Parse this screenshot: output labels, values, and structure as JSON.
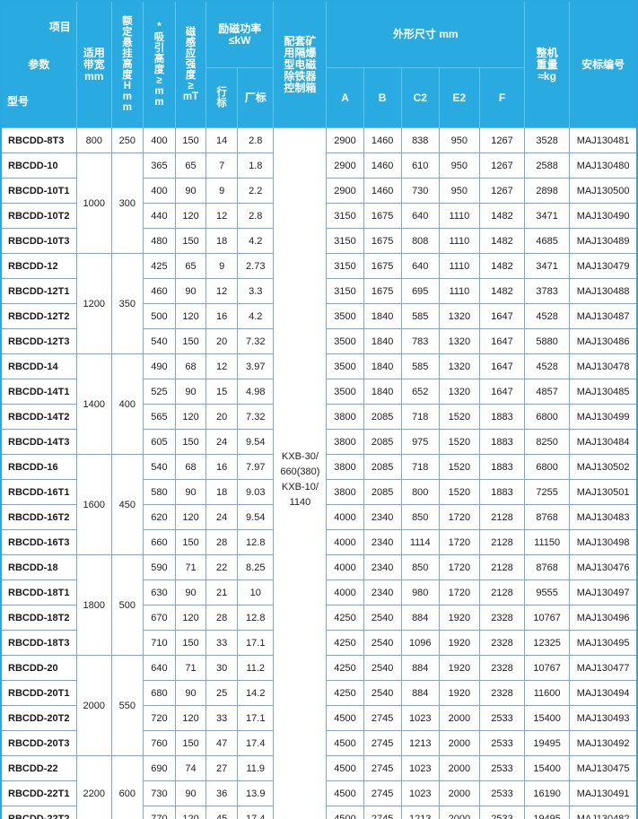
{
  "header": {
    "corner": {
      "top": "项目",
      "mid": "参数",
      "bot": "型号"
    },
    "band": "适用\n带宽\nmm",
    "hang": "额\n定\n悬\n挂\n高\n度\nH\nm\nm",
    "attract": "*\n吸\n引\n高\n度\n≥\nm\nm",
    "magnetic": "磁\n感\n应\n强\n度\n≥\nmT",
    "power_group": "励磁功率\n≤kW",
    "power_row": "行\n标",
    "power_factory": "厂标",
    "ctrl": "配套矿\n用隔爆\n型电磁\n除铁器\n控制箱",
    "dims_group": "外形尺寸 mm",
    "dims": [
      "A",
      "B",
      "C2",
      "E2",
      "F"
    ],
    "weight": "整机\n重量\n≈kg",
    "cert": "安标编号"
  },
  "ctrl_box_value": "KXB-30/\n660(380)\nKXB-10/\n1140",
  "colors": {
    "header_bg": "#29abe2",
    "grid_line": "#7ba7d7",
    "header_line": "#5ec5ee",
    "text": "#1d1d1d"
  },
  "rows": [
    {
      "model": "RBCDD-8T3",
      "band": "800",
      "hang": "250",
      "span": 1,
      "attract": "400",
      "magnetic": "150",
      "std_row": "14",
      "std_factory": "2.8",
      "a": "2900",
      "b": "1460",
      "c2": "838",
      "e2": "950",
      "f": "1267",
      "weight": "3528",
      "cert": "MAJ130481"
    },
    {
      "model": "RBCDD-10",
      "band": "1000",
      "hang": "300",
      "span": 4,
      "attract": "365",
      "magnetic": "65",
      "std_row": "7",
      "std_factory": "1.8",
      "a": "2900",
      "b": "1460",
      "c2": "610",
      "e2": "950",
      "f": "1267",
      "weight": "2588",
      "cert": "MAJ130480"
    },
    {
      "model": "RBCDD-10T1",
      "attract": "400",
      "magnetic": "90",
      "std_row": "9",
      "std_factory": "2.2",
      "a": "2900",
      "b": "1460",
      "c2": "730",
      "e2": "950",
      "f": "1267",
      "weight": "2898",
      "cert": "MAJ130500"
    },
    {
      "model": "RBCDD-10T2",
      "attract": "440",
      "magnetic": "120",
      "std_row": "12",
      "std_factory": "2.8",
      "a": "3150",
      "b": "1675",
      "c2": "640",
      "e2": "1110",
      "f": "1482",
      "weight": "3471",
      "cert": "MAJ130490"
    },
    {
      "model": "RBCDD-10T3",
      "attract": "480",
      "magnetic": "150",
      "std_row": "18",
      "std_factory": "4.2",
      "a": "3150",
      "b": "1675",
      "c2": "808",
      "e2": "1110",
      "f": "1482",
      "weight": "4685",
      "cert": "MAJ130489"
    },
    {
      "model": "RBCDD-12",
      "band": "1200",
      "hang": "350",
      "span": 4,
      "attract": "425",
      "magnetic": "65",
      "std_row": "9",
      "std_factory": "2.73",
      "a": "3150",
      "b": "1675",
      "c2": "640",
      "e2": "1110",
      "f": "1482",
      "weight": "3471",
      "cert": "MAJ130479"
    },
    {
      "model": "RBCDD-12T1",
      "attract": "460",
      "magnetic": "90",
      "std_row": "12",
      "std_factory": "3.3",
      "a": "3150",
      "b": "1675",
      "c2": "695",
      "e2": "1110",
      "f": "1482",
      "weight": "3783",
      "cert": "MAJ130488"
    },
    {
      "model": "RBCDD-12T2",
      "attract": "500",
      "magnetic": "120",
      "std_row": "16",
      "std_factory": "4.2",
      "a": "3500",
      "b": "1840",
      "c2": "585",
      "e2": "1320",
      "f": "1647",
      "weight": "4528",
      "cert": "MAJ130487"
    },
    {
      "model": "RBCDD-12T3",
      "attract": "540",
      "magnetic": "150",
      "std_row": "20",
      "std_factory": "7.32",
      "a": "3500",
      "b": "1840",
      "c2": "783",
      "e2": "1320",
      "f": "1647",
      "weight": "5880",
      "cert": "MAJ130486"
    },
    {
      "model": "RBCDD-14",
      "band": "1400",
      "hang": "400",
      "span": 4,
      "attract": "490",
      "magnetic": "68",
      "std_row": "12",
      "std_factory": "3.97",
      "a": "3500",
      "b": "1840",
      "c2": "585",
      "e2": "1320",
      "f": "1647",
      "weight": "4528",
      "cert": "MAJ130478"
    },
    {
      "model": "RBCDD-14T1",
      "attract": "525",
      "magnetic": "90",
      "std_row": "15",
      "std_factory": "4.98",
      "a": "3500",
      "b": "1840",
      "c2": "652",
      "e2": "1320",
      "f": "1647",
      "weight": "4857",
      "cert": "MAJ130485"
    },
    {
      "model": "RBCDD-14T2",
      "attract": "565",
      "magnetic": "120",
      "std_row": "20",
      "std_factory": "7.32",
      "a": "3800",
      "b": "2085",
      "c2": "718",
      "e2": "1520",
      "f": "1883",
      "weight": "6800",
      "cert": "MAJ130499"
    },
    {
      "model": "RBCDD-14T3",
      "attract": "605",
      "magnetic": "150",
      "std_row": "24",
      "std_factory": "9.54",
      "a": "3800",
      "b": "2085",
      "c2": "975",
      "e2": "1520",
      "f": "1883",
      "weight": "8250",
      "cert": "MAJ130484"
    },
    {
      "model": "RBCDD-16",
      "band": "1600",
      "hang": "450",
      "span": 4,
      "attract": "540",
      "magnetic": "68",
      "std_row": "16",
      "std_factory": "7.97",
      "a": "3800",
      "b": "2085",
      "c2": "718",
      "e2": "1520",
      "f": "1883",
      "weight": "6800",
      "cert": "MAJ130502"
    },
    {
      "model": "RBCDD-16T1",
      "attract": "580",
      "magnetic": "90",
      "std_row": "18",
      "std_factory": "9.03",
      "a": "3800",
      "b": "2085",
      "c2": "800",
      "e2": "1520",
      "f": "1883",
      "weight": "7255",
      "cert": "MAJ130501"
    },
    {
      "model": "RBCDD-16T2",
      "attract": "620",
      "magnetic": "120",
      "std_row": "24",
      "std_factory": "9.54",
      "a": "4000",
      "b": "2340",
      "c2": "850",
      "e2": "1720",
      "f": "2128",
      "weight": "8768",
      "cert": "MAJ130483"
    },
    {
      "model": "RBCDD-16T3",
      "attract": "660",
      "magnetic": "150",
      "std_row": "28",
      "std_factory": "12.8",
      "a": "4000",
      "b": "2340",
      "c2": "1114",
      "e2": "1720",
      "f": "2128",
      "weight": "11150",
      "cert": "MAJ130498"
    },
    {
      "model": "RBCDD-18",
      "band": "1800",
      "hang": "500",
      "span": 4,
      "attract": "590",
      "magnetic": "71",
      "std_row": "22",
      "std_factory": "8.25",
      "a": "4000",
      "b": "2340",
      "c2": "850",
      "e2": "1720",
      "f": "2128",
      "weight": "8768",
      "cert": "MAJ130476"
    },
    {
      "model": "RBCDD-18T1",
      "attract": "630",
      "magnetic": "90",
      "std_row": "21",
      "std_factory": "10",
      "a": "4000",
      "b": "2340",
      "c2": "980",
      "e2": "1720",
      "f": "2128",
      "weight": "9555",
      "cert": "MAJ130497"
    },
    {
      "model": "RBCDD-18T2",
      "attract": "670",
      "magnetic": "120",
      "std_row": "28",
      "std_factory": "12.8",
      "a": "4250",
      "b": "2540",
      "c2": "884",
      "e2": "1920",
      "f": "2328",
      "weight": "10767",
      "cert": "MAJ130496"
    },
    {
      "model": "RBCDD-18T3",
      "attract": "710",
      "magnetic": "150",
      "std_row": "33",
      "std_factory": "17.1",
      "a": "4250",
      "b": "2540",
      "c2": "1096",
      "e2": "1920",
      "f": "2328",
      "weight": "12325",
      "cert": "MAJ130495"
    },
    {
      "model": "RBCDD-20",
      "band": "2000",
      "hang": "550",
      "span": 4,
      "attract": "640",
      "magnetic": "71",
      "std_row": "30",
      "std_factory": "11.2",
      "a": "4250",
      "b": "2540",
      "c2": "884",
      "e2": "1920",
      "f": "2328",
      "weight": "10767",
      "cert": "MAJ130477"
    },
    {
      "model": "RBCDD-20T1",
      "attract": "680",
      "magnetic": "90",
      "std_row": "25",
      "std_factory": "14.2",
      "a": "4250",
      "b": "2540",
      "c2": "884",
      "e2": "1920",
      "f": "2328",
      "weight": "11600",
      "cert": "MAJ130494"
    },
    {
      "model": "RBCDD-20T2",
      "attract": "720",
      "magnetic": "120",
      "std_row": "33",
      "std_factory": "17.1",
      "a": "4500",
      "b": "2745",
      "c2": "1023",
      "e2": "2000",
      "f": "2533",
      "weight": "15400",
      "cert": "MAJ130493"
    },
    {
      "model": "RBCDD-20T3",
      "attract": "760",
      "magnetic": "150",
      "std_row": "47",
      "std_factory": "17.4",
      "a": "4500",
      "b": "2745",
      "c2": "1213",
      "e2": "2000",
      "f": "2533",
      "weight": "19495",
      "cert": "MAJ130492"
    },
    {
      "model": "RBCDD-22",
      "band": "2200",
      "hang": "600",
      "span": 3,
      "attract": "690",
      "magnetic": "74",
      "std_row": "27",
      "std_factory": "11.9",
      "a": "4500",
      "b": "2745",
      "c2": "1023",
      "e2": "2000",
      "f": "2533",
      "weight": "15400",
      "cert": "MAJ130475"
    },
    {
      "model": "RBCDD-22T1",
      "attract": "730",
      "magnetic": "90",
      "std_row": "36",
      "std_factory": "13.9",
      "a": "4500",
      "b": "2745",
      "c2": "1023",
      "e2": "2000",
      "f": "2533",
      "weight": "16190",
      "cert": "MAJ130491"
    },
    {
      "model": "RBCDD-22T2",
      "attract": "770",
      "magnetic": "120",
      "std_row": "45",
      "std_factory": "17.4",
      "a": "4500",
      "b": "2745",
      "c2": "1213",
      "e2": "2000",
      "f": "2533",
      "weight": "19495",
      "cert": "MAJ130482"
    }
  ]
}
